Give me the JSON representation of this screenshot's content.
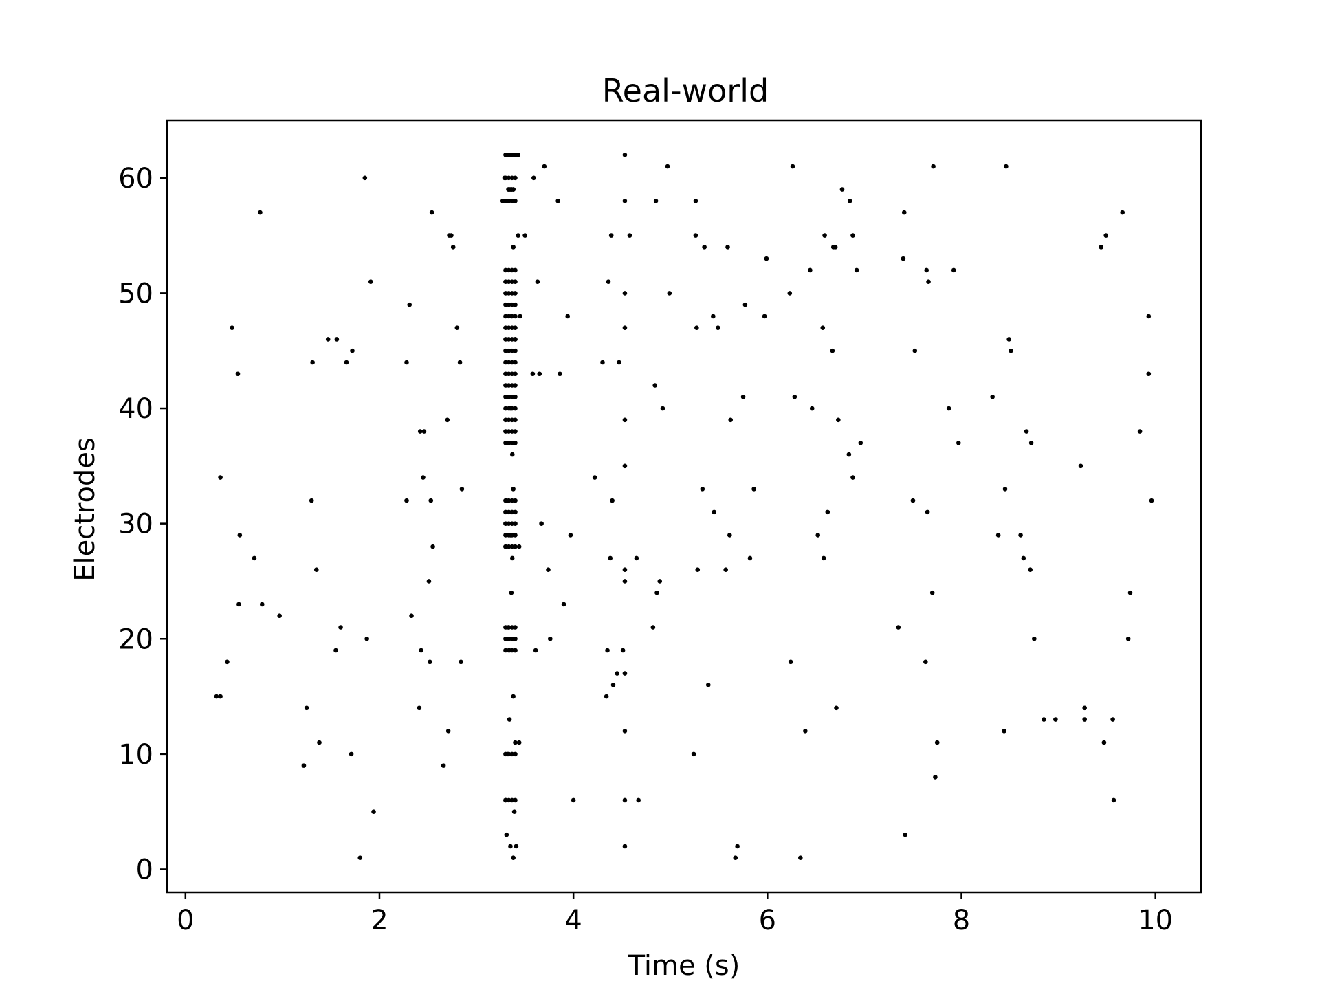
{
  "chart_data": {
    "type": "scatter",
    "title": "Real-world",
    "xlabel": "Time (s)",
    "ylabel": "Electrodes",
    "xlim": [
      -0.19,
      10.47
    ],
    "ylim": [
      -2,
      65
    ],
    "xticks": [
      0,
      2,
      4,
      6,
      8,
      10
    ],
    "yticks": [
      0,
      10,
      20,
      30,
      40,
      50,
      60
    ],
    "grid": false,
    "legend": "none",
    "marker_color": "#000000",
    "points": [
      [
        0.32,
        15
      ],
      [
        0.36,
        15
      ],
      [
        0.36,
        34
      ],
      [
        0.43,
        18
      ],
      [
        0.48,
        47
      ],
      [
        0.54,
        43
      ],
      [
        0.55,
        23
      ],
      [
        0.56,
        29
      ],
      [
        0.71,
        27
      ],
      [
        0.77,
        57
      ],
      [
        0.79,
        23
      ],
      [
        0.97,
        22
      ],
      [
        1.22,
        9
      ],
      [
        1.25,
        14
      ],
      [
        1.3,
        32
      ],
      [
        1.31,
        44
      ],
      [
        1.35,
        26
      ],
      [
        1.38,
        11
      ],
      [
        1.47,
        46
      ],
      [
        1.55,
        19
      ],
      [
        1.56,
        46
      ],
      [
        1.6,
        21
      ],
      [
        1.66,
        44
      ],
      [
        1.71,
        10
      ],
      [
        1.72,
        45
      ],
      [
        1.8,
        1
      ],
      [
        1.85,
        60
      ],
      [
        1.87,
        20
      ],
      [
        1.91,
        51
      ],
      [
        1.94,
        5
      ],
      [
        2.28,
        32
      ],
      [
        2.28,
        44
      ],
      [
        2.31,
        49
      ],
      [
        2.33,
        22
      ],
      [
        2.41,
        14
      ],
      [
        2.42,
        38
      ],
      [
        2.43,
        19
      ],
      [
        2.45,
        34
      ],
      [
        2.46,
        38
      ],
      [
        2.51,
        25
      ],
      [
        2.52,
        18
      ],
      [
        2.53,
        32
      ],
      [
        2.54,
        57
      ],
      [
        2.55,
        28
      ],
      [
        2.66,
        9
      ],
      [
        2.7,
        39
      ],
      [
        2.71,
        12
      ],
      [
        2.72,
        55
      ],
      [
        2.74,
        55
      ],
      [
        2.76,
        54
      ],
      [
        2.8,
        47
      ],
      [
        2.83,
        44
      ],
      [
        2.84,
        18
      ],
      [
        2.85,
        33
      ],
      [
        3.27,
        58
      ],
      [
        3.29,
        60
      ],
      [
        3.3,
        6
      ],
      [
        3.3,
        28
      ],
      [
        3.31,
        3
      ],
      [
        3.31,
        32
      ],
      [
        3.32,
        10
      ],
      [
        3.33,
        21
      ],
      [
        3.34,
        13
      ],
      [
        3.34,
        19
      ],
      [
        3.34,
        62
      ],
      [
        3.35,
        2
      ],
      [
        3.35,
        29
      ],
      [
        3.35,
        40
      ],
      [
        3.36,
        24
      ],
      [
        3.36,
        48
      ],
      [
        3.37,
        27
      ],
      [
        3.37,
        36
      ],
      [
        3.38,
        1
      ],
      [
        3.38,
        15
      ],
      [
        3.38,
        33
      ],
      [
        3.38,
        54
      ],
      [
        3.39,
        5
      ],
      [
        3.4,
        11
      ],
      [
        3.4,
        19
      ],
      [
        3.4,
        46
      ],
      [
        3.41,
        2
      ],
      [
        3.43,
        55
      ],
      [
        3.43,
        62
      ],
      [
        3.44,
        11
      ],
      [
        3.44,
        28
      ],
      [
        3.45,
        48
      ],
      [
        3.5,
        55
      ],
      [
        3.58,
        43
      ],
      [
        3.59,
        60
      ],
      [
        3.61,
        19
      ],
      [
        3.63,
        51
      ],
      [
        3.65,
        43
      ],
      [
        3.67,
        30
      ],
      [
        3.7,
        61
      ],
      [
        3.74,
        26
      ],
      [
        3.76,
        20
      ],
      [
        3.84,
        58
      ],
      [
        3.86,
        43
      ],
      [
        3.9,
        23
      ],
      [
        3.94,
        48
      ],
      [
        3.97,
        29
      ],
      [
        4.0,
        6
      ],
      [
        4.22,
        34
      ],
      [
        4.3,
        44
      ],
      [
        4.34,
        15
      ],
      [
        4.35,
        19
      ],
      [
        4.36,
        51
      ],
      [
        4.38,
        27
      ],
      [
        4.39,
        55
      ],
      [
        4.4,
        32
      ],
      [
        4.41,
        16
      ],
      [
        4.45,
        17
      ],
      [
        4.47,
        44
      ],
      [
        4.51,
        19
      ],
      [
        4.53,
        62
      ],
      [
        4.53,
        58
      ],
      [
        4.53,
        50
      ],
      [
        4.53,
        47
      ],
      [
        4.53,
        39
      ],
      [
        4.53,
        35
      ],
      [
        4.53,
        26
      ],
      [
        4.53,
        25
      ],
      [
        4.53,
        17
      ],
      [
        4.53,
        12
      ],
      [
        4.53,
        6
      ],
      [
        4.53,
        2
      ],
      [
        4.58,
        55
      ],
      [
        4.65,
        27
      ],
      [
        4.67,
        6
      ],
      [
        4.82,
        21
      ],
      [
        4.84,
        42
      ],
      [
        4.85,
        58
      ],
      [
        4.86,
        24
      ],
      [
        4.89,
        25
      ],
      [
        4.92,
        40
      ],
      [
        4.97,
        61
      ],
      [
        4.99,
        50
      ],
      [
        5.24,
        10
      ],
      [
        5.26,
        58
      ],
      [
        5.26,
        55
      ],
      [
        5.27,
        47
      ],
      [
        5.28,
        26
      ],
      [
        5.33,
        33
      ],
      [
        5.35,
        54
      ],
      [
        5.39,
        16
      ],
      [
        5.44,
        48
      ],
      [
        5.45,
        31
      ],
      [
        5.49,
        47
      ],
      [
        5.57,
        26
      ],
      [
        5.59,
        54
      ],
      [
        5.61,
        29
      ],
      [
        5.62,
        39
      ],
      [
        5.67,
        1
      ],
      [
        5.69,
        2
      ],
      [
        5.75,
        41
      ],
      [
        5.77,
        49
      ],
      [
        5.82,
        27
      ],
      [
        5.86,
        33
      ],
      [
        5.97,
        48
      ],
      [
        5.99,
        53
      ],
      [
        6.23,
        50
      ],
      [
        6.24,
        18
      ],
      [
        6.26,
        61
      ],
      [
        6.28,
        41
      ],
      [
        6.34,
        1
      ],
      [
        6.39,
        12
      ],
      [
        6.44,
        52
      ],
      [
        6.46,
        40
      ],
      [
        6.52,
        29
      ],
      [
        6.57,
        47
      ],
      [
        6.58,
        27
      ],
      [
        6.59,
        55
      ],
      [
        6.62,
        31
      ],
      [
        6.67,
        45
      ],
      [
        6.68,
        54
      ],
      [
        6.7,
        54
      ],
      [
        6.71,
        14
      ],
      [
        6.73,
        39
      ],
      [
        6.77,
        59
      ],
      [
        6.84,
        36
      ],
      [
        6.85,
        58
      ],
      [
        6.88,
        55
      ],
      [
        6.88,
        34
      ],
      [
        6.92,
        52
      ],
      [
        6.96,
        37
      ],
      [
        7.35,
        21
      ],
      [
        7.4,
        53
      ],
      [
        7.41,
        57
      ],
      [
        7.42,
        3
      ],
      [
        7.5,
        32
      ],
      [
        7.52,
        45
      ],
      [
        7.63,
        18
      ],
      [
        7.64,
        52
      ],
      [
        7.65,
        31
      ],
      [
        7.66,
        51
      ],
      [
        7.7,
        24
      ],
      [
        7.71,
        61
      ],
      [
        7.73,
        8
      ],
      [
        7.75,
        11
      ],
      [
        7.87,
        40
      ],
      [
        7.92,
        52
      ],
      [
        7.97,
        37
      ],
      [
        8.32,
        41
      ],
      [
        8.38,
        29
      ],
      [
        8.44,
        12
      ],
      [
        8.45,
        33
      ],
      [
        8.46,
        61
      ],
      [
        8.49,
        46
      ],
      [
        8.51,
        45
      ],
      [
        8.61,
        29
      ],
      [
        8.64,
        27
      ],
      [
        8.67,
        38
      ],
      [
        8.71,
        26
      ],
      [
        8.72,
        37
      ],
      [
        8.75,
        20
      ],
      [
        8.85,
        13
      ],
      [
        8.97,
        13
      ],
      [
        9.23,
        35
      ],
      [
        9.27,
        14
      ],
      [
        9.27,
        13
      ],
      [
        9.44,
        54
      ],
      [
        9.47,
        11
      ],
      [
        9.49,
        55
      ],
      [
        9.56,
        13
      ],
      [
        9.57,
        6
      ],
      [
        9.66,
        57
      ],
      [
        9.72,
        20
      ],
      [
        9.74,
        24
      ],
      [
        9.84,
        38
      ],
      [
        9.93,
        48
      ],
      [
        9.93,
        43
      ],
      [
        9.96,
        32
      ]
    ],
    "bursts": [
      {
        "x_start": 3.3,
        "x_end": 3.4,
        "y": [
          62,
          60,
          58,
          52,
          51,
          50,
          49,
          48,
          47,
          46,
          45,
          44,
          43,
          42,
          41,
          40,
          39,
          38,
          37,
          32,
          31,
          30,
          29,
          28,
          21,
          20,
          19,
          10,
          6
        ]
      },
      {
        "x_start": 3.33,
        "x_end": 3.38,
        "y": [
          59,
          59
        ]
      }
    ]
  }
}
